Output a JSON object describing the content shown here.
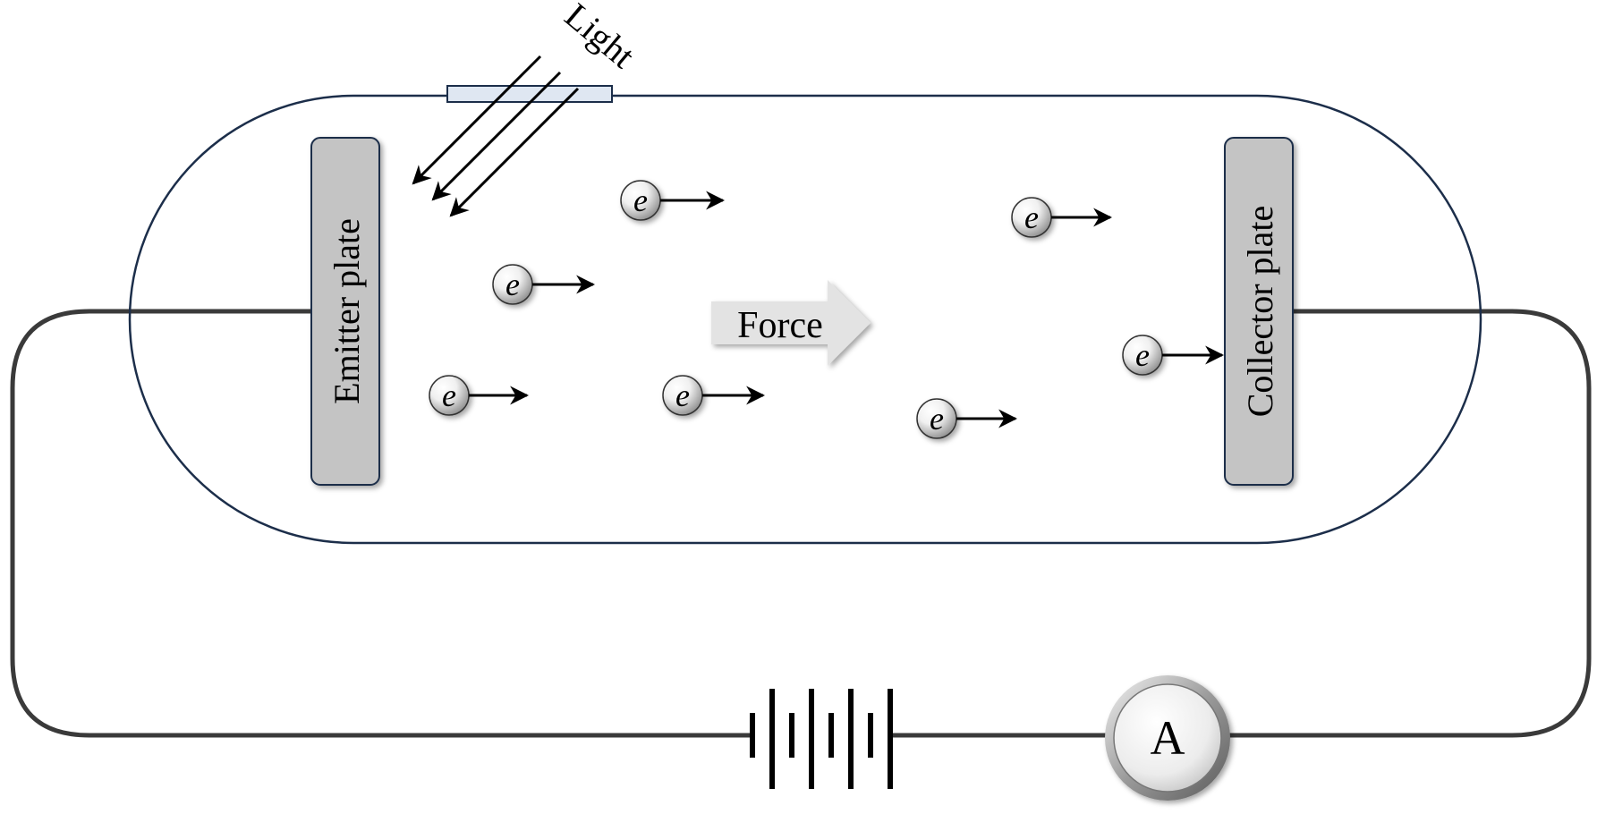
{
  "labels": {
    "light": "Light",
    "emitter": "Emitter plate",
    "collector": "Collector plate",
    "force": "Force",
    "ammeter": "A",
    "electron": "e"
  },
  "colors": {
    "tube_outline": "#1c2e4a",
    "wire": "#3a3a3a",
    "plate_fill": "#c4c4c4",
    "window_fill": "#dfe7f2",
    "force_arrow": "#e3e3e3"
  }
}
